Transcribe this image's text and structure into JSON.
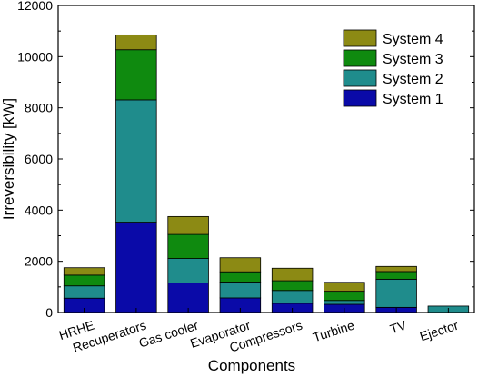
{
  "chart_data": {
    "type": "bar",
    "stacked": true,
    "title": "",
    "xlabel": "Components",
    "ylabel": "Irreversibility [kW]",
    "ylim": [
      0,
      12000
    ],
    "yticks": [
      0,
      2000,
      4000,
      6000,
      8000,
      10000,
      12000
    ],
    "grid": false,
    "legend_position": "top-right",
    "legend_order": [
      "System 4",
      "System 3",
      "System 2",
      "System 1"
    ],
    "categories": [
      "HRHE",
      "Recuperators",
      "Gas cooler",
      "Evaporator",
      "Compressors",
      "Turbine",
      "TV",
      "Ejector"
    ],
    "series": [
      {
        "name": "System 1",
        "color": "#0a0aa8",
        "values": [
          560,
          3530,
          1150,
          570,
          360,
          320,
          200,
          0
        ]
      },
      {
        "name": "System 2",
        "color": "#1f8c8c",
        "values": [
          480,
          4780,
          960,
          620,
          500,
          150,
          1100,
          250
        ]
      },
      {
        "name": "System 3",
        "color": "#0f8a0f",
        "values": [
          420,
          1960,
          940,
          400,
          380,
          360,
          300,
          0
        ]
      },
      {
        "name": "System 4",
        "color": "#8c8a14",
        "values": [
          290,
          580,
          700,
          550,
          490,
          350,
          200,
          0
        ]
      }
    ]
  }
}
